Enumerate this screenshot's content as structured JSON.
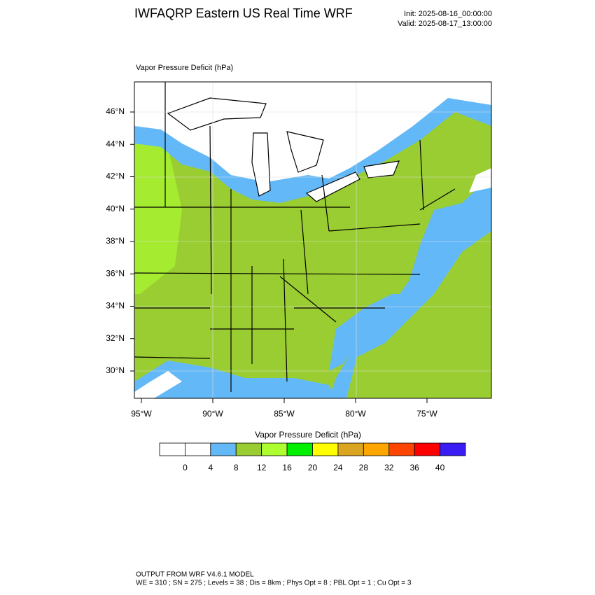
{
  "header": {
    "title": "IWFAQRP Eastern US Real Time WRF",
    "init": "Init: 2025-08-16_00:00:00",
    "valid": "Valid: 2025-08-17_13:00:00"
  },
  "map": {
    "label": "Vapor Pressure Deficit   (hPa)",
    "lat_labels": [
      "46°N",
      "44°N",
      "42°N",
      "40°N",
      "38°N",
      "36°N",
      "34°N",
      "32°N",
      "30°N"
    ],
    "lon_labels": [
      "95°W",
      "90°W",
      "85°W",
      "80°W",
      "75°W"
    ]
  },
  "colorbar": {
    "title": "Vapor Pressure Deficit  (hPa)",
    "colors": [
      "#ffffff",
      "#ffffff",
      "#63b8f8",
      "#9acd32",
      "#adff2f",
      "#00f000",
      "#ffff00",
      "#daa520",
      "#ffa500",
      "#ff4500",
      "#ff0000",
      "#3a1cf5"
    ],
    "ticks": [
      0,
      4,
      8,
      12,
      16,
      20,
      24,
      28,
      32,
      36,
      40
    ]
  },
  "footer": {
    "line1": "OUTPUT FROM WRF V4.6.1 MODEL",
    "line2": "WE = 310 ; SN = 275 ; Levels = 38 ; Dis = 8km ; Phys Opt = 8 ; PBL Opt = 1 ; Cu Opt = 3"
  }
}
